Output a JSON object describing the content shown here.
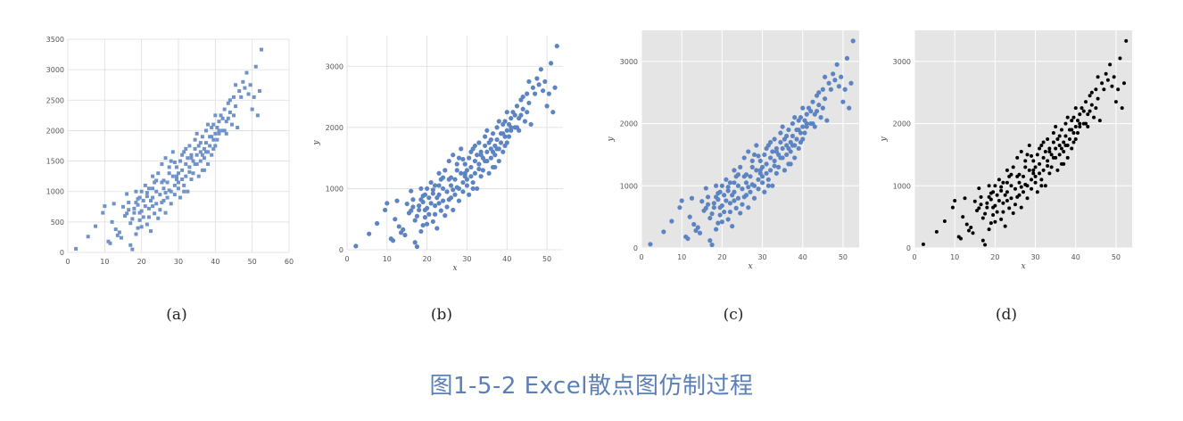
{
  "caption": "图1-5-2  Excel散点图仿制过程",
  "chart_data": [
    {
      "panel": "(a)",
      "type": "scatter",
      "xlabel": "",
      "ylabel": "",
      "xlim": [
        0,
        60
      ],
      "ylim": [
        0,
        3500
      ],
      "xticks": [
        "0",
        "10",
        "20",
        "30",
        "40",
        "50",
        "60"
      ],
      "yticks": [
        "0",
        "500",
        "1000",
        "1500",
        "2000",
        "2500",
        "3000",
        "3500"
      ],
      "grid": true,
      "background": "#ffffff",
      "marker_color": "#6f93c8",
      "marker": "square"
    },
    {
      "panel": "(b)",
      "type": "scatter",
      "xlabel": "x",
      "ylabel": "y",
      "xlim": [
        0,
        54
      ],
      "ylim": [
        0,
        3500
      ],
      "xticks": [
        "0",
        "10",
        "20",
        "30",
        "40",
        "50"
      ],
      "yticks": [
        "0",
        "1000",
        "2000",
        "3000"
      ],
      "grid": true,
      "background": "#ffffff",
      "marker_color": "#5d84c2",
      "marker": "circle"
    },
    {
      "panel": "(c)",
      "type": "scatter",
      "xlabel": "x",
      "ylabel": "y",
      "xlim": [
        0,
        54
      ],
      "ylim": [
        0,
        3500
      ],
      "xticks": [
        "0",
        "10",
        "20",
        "30",
        "40",
        "50"
      ],
      "yticks": [
        "0",
        "1000",
        "2000",
        "3000"
      ],
      "grid": true,
      "background": "#e5e5e5",
      "marker_color": "#5d84c2",
      "marker": "circle"
    },
    {
      "panel": "(d)",
      "type": "scatter",
      "xlabel": "x",
      "ylabel": "y",
      "xlim": [
        0,
        54
      ],
      "ylim": [
        0,
        3500
      ],
      "xticks": [
        "0",
        "10",
        "20",
        "30",
        "40",
        "50"
      ],
      "yticks": [
        "0",
        "1000",
        "2000",
        "3000"
      ],
      "grid": true,
      "background": "#e5e5e5",
      "marker_color": "#000000",
      "marker": "circle"
    }
  ],
  "points": [
    [
      2.2,
      60
    ],
    [
      5.5,
      260
    ],
    [
      7.5,
      430
    ],
    [
      9.5,
      650
    ],
    [
      10,
      760
    ],
    [
      11,
      180
    ],
    [
      11.5,
      150
    ],
    [
      12,
      500
    ],
    [
      12.5,
      800
    ],
    [
      13,
      380
    ],
    [
      13.5,
      280
    ],
    [
      14,
      330
    ],
    [
      15,
      750
    ],
    [
      15.5,
      600
    ],
    [
      16,
      960
    ],
    [
      16.5,
      700
    ],
    [
      17,
      120
    ],
    [
      17,
      480
    ],
    [
      17.5,
      50
    ],
    [
      17.5,
      550
    ],
    [
      18,
      720
    ],
    [
      18,
      650
    ],
    [
      18.5,
      820
    ],
    [
      18.5,
      300
    ],
    [
      19,
      780
    ],
    [
      19,
      400
    ],
    [
      19.5,
      900
    ],
    [
      19.5,
      530
    ],
    [
      20,
      1000
    ],
    [
      20,
      680
    ],
    [
      20.5,
      580
    ],
    [
      20.5,
      850
    ],
    [
      21,
      760
    ],
    [
      21,
      1100
    ],
    [
      21.5,
      460
    ],
    [
      21.5,
      920
    ],
    [
      22,
      720
    ],
    [
      22,
      1050
    ],
    [
      22.5,
      350
    ],
    [
      22.5,
      850
    ],
    [
      23,
      1250
    ],
    [
      23,
      900
    ],
    [
      23.5,
      640
    ],
    [
      23.5,
      1150
    ],
    [
      24,
      800
    ],
    [
      24,
      1000
    ],
    [
      24.5,
      560
    ],
    [
      24.5,
      1300
    ],
    [
      25,
      950
    ],
    [
      25,
      700
    ],
    [
      25.5,
      1150
    ],
    [
      25.5,
      1450
    ],
    [
      26,
      850
    ],
    [
      26,
      1050
    ],
    [
      26.5,
      1550
    ],
    [
      26.5,
      650
    ],
    [
      27,
      1150
    ],
    [
      27,
      900
    ],
    [
      27.5,
      1300
    ],
    [
      27.5,
      1400
    ],
    [
      28,
      1000
    ],
    [
      28,
      800
    ],
    [
      28.5,
      1250
    ],
    [
      28.5,
      1650
    ],
    [
      29,
      1100
    ],
    [
      29,
      950
    ],
    [
      29.5,
      1400
    ],
    [
      29.5,
      1200
    ],
    [
      30,
      1050
    ],
    [
      30,
      1300
    ],
    [
      30.5,
      1500
    ],
    [
      30.5,
      900
    ],
    [
      31,
      1200
    ],
    [
      31,
      1350
    ],
    [
      31.5,
      1100
    ],
    [
      31.5,
      1650
    ],
    [
      32,
      1450
    ],
    [
      32,
      1250
    ],
    [
      32.5,
      1000
    ],
    [
      32.5,
      1550
    ],
    [
      33,
      1400
    ],
    [
      33,
      1750
    ],
    [
      33.5,
      1200
    ],
    [
      33.5,
      1600
    ],
    [
      34,
      1500
    ],
    [
      34,
      1300
    ],
    [
      34.5,
      1700
    ],
    [
      34.5,
      1850
    ],
    [
      35,
      1450
    ],
    [
      35,
      1600
    ],
    [
      35.5,
      1250
    ],
    [
      35.5,
      1750
    ],
    [
      36,
      1650
    ],
    [
      36,
      1500
    ],
    [
      36.5,
      1900
    ],
    [
      36.5,
      1350
    ],
    [
      37,
      1700
    ],
    [
      37,
      1550
    ],
    [
      37.5,
      1800
    ],
    [
      37.5,
      2000
    ],
    [
      38,
      1650
    ],
    [
      38,
      1450
    ],
    [
      38.5,
      1900
    ],
    [
      38.5,
      1750
    ],
    [
      39,
      2050
    ],
    [
      39,
      1600
    ],
    [
      39.5,
      1850
    ],
    [
      39.5,
      2100
    ],
    [
      40,
      1950
    ],
    [
      40,
      1750
    ],
    [
      40.5,
      2050
    ],
    [
      40.5,
      1850
    ],
    [
      41,
      2150
    ],
    [
      41,
      1950
    ],
    [
      41.5,
      2250
    ],
    [
      42,
      2000
    ],
    [
      42,
      2200
    ],
    [
      42.5,
      2350
    ],
    [
      43,
      2150
    ],
    [
      43,
      1950
    ],
    [
      43.5,
      2450
    ],
    [
      44,
      2300
    ],
    [
      44.5,
      2100
    ],
    [
      45,
      2550
    ],
    [
      45,
      2250
    ],
    [
      45.5,
      2400
    ],
    [
      46,
      2050
    ],
    [
      46.5,
      2650
    ],
    [
      47,
      2550
    ],
    [
      47.5,
      2800
    ],
    [
      48,
      2700
    ],
    [
      48.5,
      2950
    ],
    [
      49,
      2600
    ],
    [
      49.5,
      2750
    ],
    [
      50,
      2350
    ],
    [
      50.5,
      2550
    ],
    [
      51,
      3050
    ],
    [
      51.5,
      2250
    ],
    [
      52,
      2650
    ],
    [
      52.5,
      3330
    ],
    [
      19,
      880
    ],
    [
      21.5,
      980
    ],
    [
      23,
      760
    ],
    [
      26,
      1180
    ],
    [
      27.5,
      1020
    ],
    [
      29,
      1480
    ],
    [
      30,
      1150
    ],
    [
      31.5,
      1000
    ],
    [
      33,
      1320
    ],
    [
      34.5,
      1450
    ],
    [
      36,
      1800
    ],
    [
      37,
      1350
    ],
    [
      38,
      2100
    ],
    [
      39.5,
      1700
    ],
    [
      41,
      2000
    ],
    [
      42.5,
      2000
    ],
    [
      44,
      2500
    ],
    [
      16,
      640
    ],
    [
      18.5,
      1000
    ],
    [
      20,
      420
    ],
    [
      22,
      580
    ],
    [
      24,
      1180
    ],
    [
      25.5,
      820
    ],
    [
      28,
      1500
    ],
    [
      31,
      1600
    ],
    [
      32,
      1700
    ],
    [
      35,
      1950
    ],
    [
      37.5,
      1650
    ],
    [
      40,
      2250
    ],
    [
      45.5,
      2750
    ],
    [
      14.5,
      240
    ],
    [
      16.5,
      820
    ],
    [
      19.5,
      650
    ],
    [
      23,
      1050
    ],
    [
      26.5,
      980
    ],
    [
      29.5,
      1250
    ],
    [
      33.5,
      1550
    ],
    [
      36.5,
      1600
    ],
    [
      39,
      1900
    ],
    [
      43.5,
      2200
    ]
  ],
  "panel_labels": [
    "(a)",
    "(b)",
    "(c)",
    "(d)"
  ]
}
